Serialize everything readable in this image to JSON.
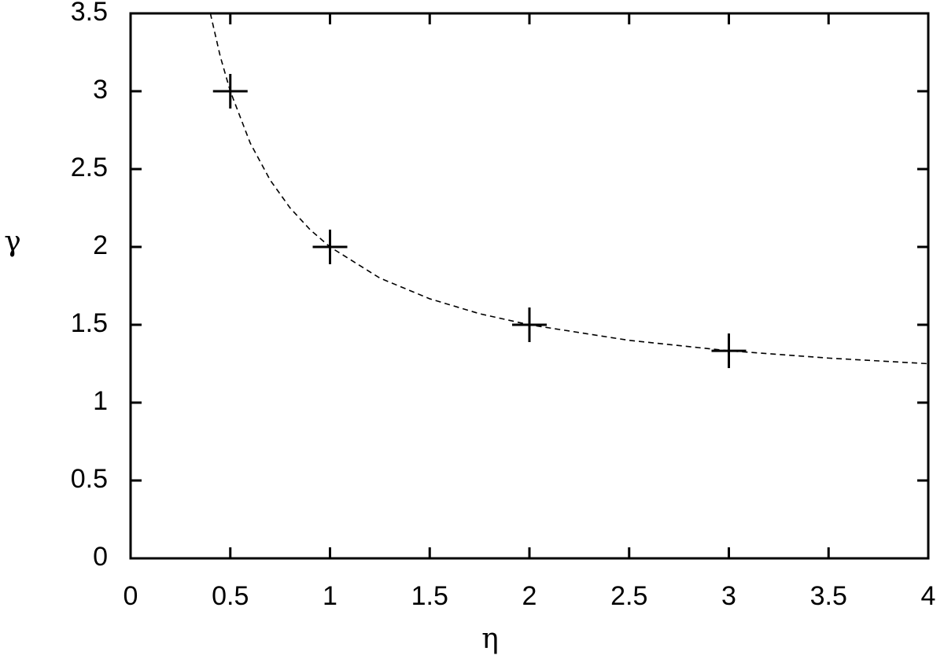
{
  "chart_data": {
    "type": "scatter",
    "x_label": "η",
    "y_label": "γ",
    "points": {
      "x": [
        0.5,
        1,
        2,
        3
      ],
      "values": [
        3,
        2,
        1.5,
        1.333
      ],
      "color": "#000000",
      "marker": "plus"
    },
    "curve": {
      "x": [
        0.4,
        0.45,
        0.5,
        0.6,
        0.7,
        0.8,
        0.9,
        1,
        1.25,
        1.5,
        1.75,
        2,
        2.5,
        3,
        3.5,
        4
      ],
      "values": [
        3.5,
        3.222,
        3,
        2.667,
        2.429,
        2.25,
        2.111,
        2,
        1.8,
        1.667,
        1.571,
        1.5,
        1.4,
        1.333,
        1.286,
        1.25
      ],
      "color": "#000000",
      "dashed": true
    },
    "xlim": [
      0,
      4
    ],
    "ylim": [
      0,
      3.5
    ],
    "xticks": [
      0,
      0.5,
      1,
      1.5,
      2,
      2.5,
      3,
      3.5,
      4
    ],
    "yticks": [
      0,
      0.5,
      1,
      1.5,
      2,
      2.5,
      3,
      3.5
    ],
    "grid": false
  }
}
